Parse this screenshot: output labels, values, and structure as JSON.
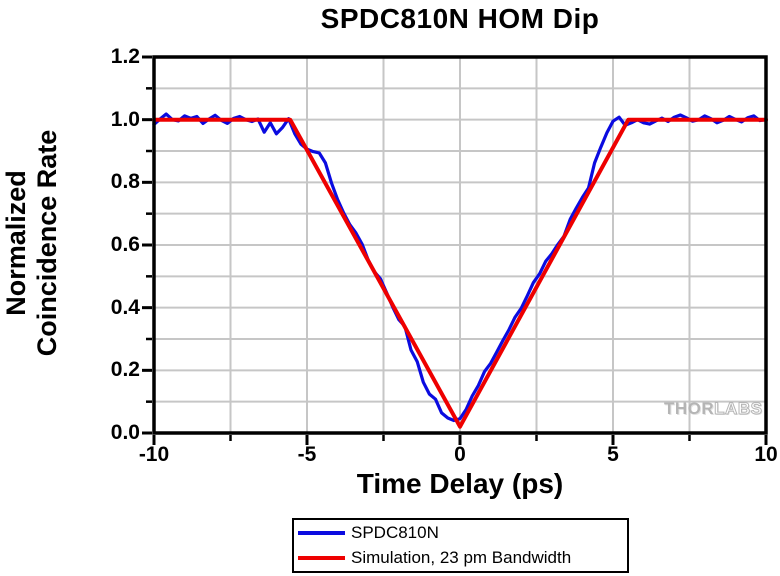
{
  "title": "SPDC810N HOM Dip",
  "watermark": {
    "part1": "THOR",
    "part2": "LABS"
  },
  "legend": {
    "items": [
      {
        "label": "SPDC810N",
        "color": "#0b0be0"
      },
      {
        "label": "Simulation, 23 pm Bandwidth",
        "color": "#ee0000"
      }
    ]
  },
  "chart_data": {
    "type": "line",
    "title": "SPDC810N HOM Dip",
    "xlabel": "Time Delay (ps)",
    "ylabel": "Normalized Coincidence Rate",
    "ylabel_lines": [
      "Normalized",
      "Coincidence Rate"
    ],
    "xlim": [
      -10,
      10
    ],
    "ylim": [
      0,
      1.2
    ],
    "x_major_ticks": [
      -10,
      -5,
      0,
      5,
      10
    ],
    "x_tick_labels": [
      "-10",
      "-5",
      "0",
      "5",
      "10"
    ],
    "x_minor_ticks": [
      -7.5,
      -2.5,
      2.5,
      7.5
    ],
    "y_major_ticks": [
      0,
      0.2,
      0.4,
      0.6,
      0.8,
      1.0,
      1.2
    ],
    "y_tick_labels": [
      "0.0",
      "0.2",
      "0.4",
      "0.6",
      "0.8",
      "1.0",
      "1.2"
    ],
    "y_minor_ticks": [
      0.1,
      0.3,
      0.5,
      0.7,
      0.9,
      1.1
    ],
    "grid": {
      "on": true,
      "color": "#c6c6c6",
      "x_lines": [
        -7.5,
        -5,
        -2.5,
        0,
        2.5,
        5,
        7.5
      ],
      "y_lines": [
        0.1,
        0.2,
        0.3,
        0.4,
        0.5,
        0.6,
        0.7,
        0.8,
        0.9,
        1.0,
        1.1
      ]
    },
    "legend_position": "bottom-center",
    "series": [
      {
        "name": "SPDC810N",
        "color": "#0b0be0",
        "width": 3.2,
        "points": [
          [
            -10.0,
            0.985
          ],
          [
            -9.8,
            1.002
          ],
          [
            -9.6,
            1.018
          ],
          [
            -9.4,
            1.0
          ],
          [
            -9.2,
            0.996
          ],
          [
            -9.0,
            1.012
          ],
          [
            -8.8,
            1.004
          ],
          [
            -8.6,
            1.01
          ],
          [
            -8.4,
            0.988
          ],
          [
            -8.2,
            1.002
          ],
          [
            -8.0,
            1.014
          ],
          [
            -7.8,
            0.998
          ],
          [
            -7.6,
            0.988
          ],
          [
            -7.4,
            1.004
          ],
          [
            -7.2,
            1.01
          ],
          [
            -7.0,
            1.0
          ],
          [
            -6.8,
            0.994
          ],
          [
            -6.6,
            1.002
          ],
          [
            -6.4,
            0.96
          ],
          [
            -6.2,
            0.99
          ],
          [
            -6.0,
            0.955
          ],
          [
            -5.8,
            0.975
          ],
          [
            -5.6,
            1.003
          ],
          [
            -5.4,
            0.955
          ],
          [
            -5.2,
            0.922
          ],
          [
            -5.0,
            0.906
          ],
          [
            -4.8,
            0.898
          ],
          [
            -4.6,
            0.894
          ],
          [
            -4.4,
            0.862
          ],
          [
            -4.2,
            0.798
          ],
          [
            -4.0,
            0.745
          ],
          [
            -3.8,
            0.702
          ],
          [
            -3.6,
            0.665
          ],
          [
            -3.4,
            0.638
          ],
          [
            -3.2,
            0.603
          ],
          [
            -3.0,
            0.552
          ],
          [
            -2.8,
            0.515
          ],
          [
            -2.6,
            0.492
          ],
          [
            -2.4,
            0.448
          ],
          [
            -2.2,
            0.402
          ],
          [
            -2.0,
            0.362
          ],
          [
            -1.8,
            0.34
          ],
          [
            -1.6,
            0.265
          ],
          [
            -1.4,
            0.228
          ],
          [
            -1.2,
            0.162
          ],
          [
            -1.0,
            0.124
          ],
          [
            -0.8,
            0.108
          ],
          [
            -0.6,
            0.064
          ],
          [
            -0.4,
            0.048
          ],
          [
            -0.2,
            0.04
          ],
          [
            0.0,
            0.046
          ],
          [
            0.2,
            0.075
          ],
          [
            0.4,
            0.118
          ],
          [
            0.6,
            0.152
          ],
          [
            0.8,
            0.196
          ],
          [
            1.0,
            0.222
          ],
          [
            1.2,
            0.258
          ],
          [
            1.4,
            0.295
          ],
          [
            1.6,
            0.33
          ],
          [
            1.8,
            0.37
          ],
          [
            2.0,
            0.398
          ],
          [
            2.2,
            0.438
          ],
          [
            2.4,
            0.48
          ],
          [
            2.6,
            0.508
          ],
          [
            2.8,
            0.548
          ],
          [
            3.0,
            0.572
          ],
          [
            3.2,
            0.602
          ],
          [
            3.4,
            0.628
          ],
          [
            3.6,
            0.682
          ],
          [
            3.8,
            0.718
          ],
          [
            4.0,
            0.752
          ],
          [
            4.2,
            0.782
          ],
          [
            4.4,
            0.862
          ],
          [
            4.6,
            0.912
          ],
          [
            4.8,
            0.958
          ],
          [
            5.0,
            0.995
          ],
          [
            5.2,
            1.008
          ],
          [
            5.4,
            0.982
          ],
          [
            5.6,
            0.99
          ],
          [
            5.8,
            1.0
          ],
          [
            6.0,
            0.99
          ],
          [
            6.2,
            0.986
          ],
          [
            6.4,
            0.996
          ],
          [
            6.6,
            1.005
          ],
          [
            6.8,
            0.994
          ],
          [
            7.0,
            1.008
          ],
          [
            7.2,
            1.015
          ],
          [
            7.4,
            1.006
          ],
          [
            7.6,
            0.995
          ],
          [
            7.8,
            1.0
          ],
          [
            8.0,
            1.012
          ],
          [
            8.2,
            1.003
          ],
          [
            8.4,
            0.99
          ],
          [
            8.6,
            0.998
          ],
          [
            8.8,
            1.01
          ],
          [
            9.0,
            1.001
          ],
          [
            9.2,
            0.993
          ],
          [
            9.4,
            1.006
          ],
          [
            9.6,
            1.012
          ],
          [
            9.8,
            0.997
          ],
          [
            10.0,
            1.001
          ]
        ]
      },
      {
        "name": "Simulation, 23 pm Bandwidth",
        "color": "#ee0000",
        "width": 4,
        "points": [
          [
            -10,
            1.0
          ],
          [
            -5.55,
            1.0
          ],
          [
            0,
            0.02
          ],
          [
            5.5,
            1.0
          ],
          [
            10,
            1.0
          ]
        ]
      }
    ]
  }
}
